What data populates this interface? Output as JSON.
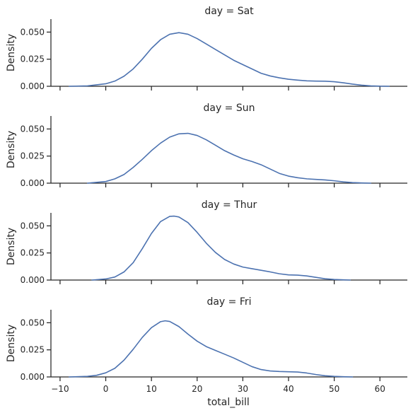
{
  "chart_data": {
    "type": "line",
    "layout": "facet-rows",
    "xlabel": "total_bill",
    "ylabel": "Density",
    "xlim": [
      -12,
      66
    ],
    "ylim": [
      0,
      0.062
    ],
    "xticks": [
      -10,
      0,
      10,
      20,
      30,
      40,
      50,
      60
    ],
    "xtick_labels": [
      "−10",
      "0",
      "10",
      "20",
      "30",
      "40",
      "50",
      "60"
    ],
    "yticks": [
      0,
      0.025,
      0.05
    ],
    "ytick_labels": [
      "0.000",
      "0.025",
      "0.050"
    ],
    "grid": false,
    "line_color": "#4c72b0",
    "panels": [
      {
        "title": "day = Sat",
        "x": [
          -8,
          -4,
          0,
          2,
          4,
          6,
          8,
          10,
          12,
          14,
          16,
          18,
          20,
          22,
          24,
          26,
          28,
          30,
          32,
          34,
          36,
          38,
          40,
          42,
          44,
          46,
          48,
          50,
          52,
          54,
          56,
          58,
          60,
          62
        ],
        "y": [
          0.0,
          0.0004,
          0.0023,
          0.0048,
          0.0093,
          0.016,
          0.025,
          0.035,
          0.043,
          0.048,
          0.0495,
          0.048,
          0.044,
          0.039,
          0.034,
          0.029,
          0.024,
          0.02,
          0.016,
          0.012,
          0.0095,
          0.0078,
          0.0065,
          0.0057,
          0.005,
          0.0048,
          0.0047,
          0.0042,
          0.0032,
          0.002,
          0.001,
          0.0004,
          0.0001,
          0.0
        ]
      },
      {
        "title": "day = Sun",
        "x": [
          -4,
          0,
          2,
          4,
          6,
          8,
          10,
          12,
          14,
          16,
          18,
          20,
          22,
          24,
          26,
          28,
          30,
          32,
          34,
          36,
          38,
          40,
          42,
          44,
          46,
          48,
          50,
          52,
          54,
          56,
          58
        ],
        "y": [
          0.0,
          0.0015,
          0.004,
          0.008,
          0.0145,
          0.022,
          0.03,
          0.037,
          0.0425,
          0.0455,
          0.046,
          0.044,
          0.04,
          0.035,
          0.03,
          0.026,
          0.0225,
          0.02,
          0.017,
          0.013,
          0.009,
          0.0065,
          0.005,
          0.004,
          0.0035,
          0.003,
          0.0022,
          0.0012,
          0.0005,
          0.0002,
          0.0
        ]
      },
      {
        "title": "day = Thur",
        "x": [
          -3,
          0,
          2,
          4,
          6,
          8,
          10,
          12,
          14,
          15,
          16,
          18,
          20,
          22,
          24,
          26,
          28,
          30,
          32,
          34,
          36,
          38,
          40,
          42,
          44,
          46,
          48,
          50,
          52,
          53.5
        ],
        "y": [
          0.0,
          0.001,
          0.0028,
          0.0075,
          0.016,
          0.029,
          0.043,
          0.054,
          0.0588,
          0.059,
          0.0582,
          0.053,
          0.044,
          0.034,
          0.0255,
          0.019,
          0.0148,
          0.012,
          0.0105,
          0.009,
          0.0075,
          0.0058,
          0.0048,
          0.0045,
          0.0038,
          0.0025,
          0.0012,
          0.0005,
          0.0002,
          0.0
        ]
      },
      {
        "title": "day = Fri",
        "x": [
          -8,
          -4,
          -2,
          0,
          2,
          4,
          6,
          8,
          10,
          12,
          13,
          14,
          16,
          18,
          20,
          22,
          24,
          26,
          28,
          30,
          32,
          34,
          36,
          38,
          40,
          42,
          44,
          46,
          48,
          50,
          52,
          54
        ],
        "y": [
          0.0,
          0.0005,
          0.0015,
          0.0038,
          0.008,
          0.0155,
          0.0255,
          0.0365,
          0.0455,
          0.051,
          0.0518,
          0.0512,
          0.0465,
          0.0395,
          0.033,
          0.028,
          0.0245,
          0.021,
          0.0175,
          0.0135,
          0.0095,
          0.0068,
          0.0055,
          0.005,
          0.0048,
          0.0045,
          0.0036,
          0.0022,
          0.0011,
          0.0005,
          0.0002,
          0.0
        ]
      }
    ]
  }
}
